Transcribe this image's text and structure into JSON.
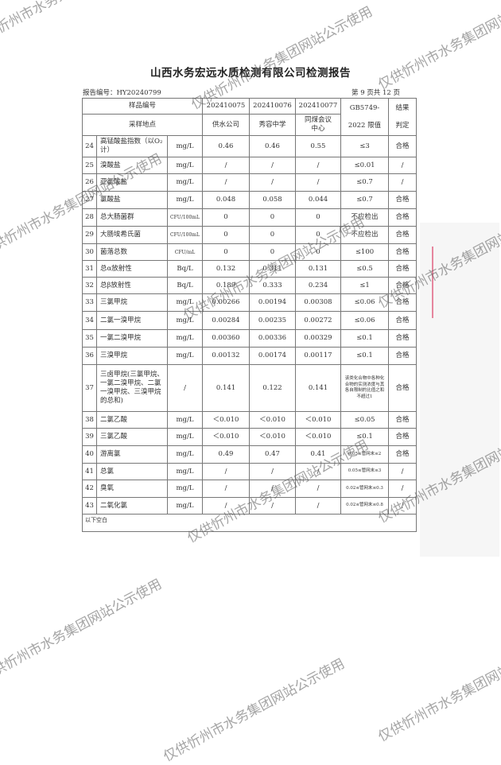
{
  "title": "山西水务宏远水质检测有限公司检测报告",
  "report_no": "报告编号：HY20240799",
  "page_info": "第 9 页共 12 页",
  "header": {
    "sample_no_label": "样品编号",
    "site_label": "采样地点",
    "samples": [
      "202410075",
      "202410076",
      "202410077"
    ],
    "sites": [
      "供水公司",
      "秀容中学",
      "同煤会议中心"
    ],
    "limit_label_1": "GB5749-",
    "limit_label_2": "2022 限值",
    "result_label": "结果判定"
  },
  "rows": [
    {
      "no": "24",
      "item": "高锰酸盐指数（以O₂计）",
      "unit": "mg/L",
      "v1": "0.46",
      "v2": "0.46",
      "v3": "0.55",
      "limit": "≤3",
      "result": "合格"
    },
    {
      "no": "25",
      "item": "溴酸盐",
      "unit": "mg/L",
      "v1": "/",
      "v2": "/",
      "v3": "/",
      "limit": "≤0.01",
      "result": "/"
    },
    {
      "no": "26",
      "item": "亚氯酸盐",
      "unit": "mg/L",
      "v1": "/",
      "v2": "/",
      "v3": "/",
      "limit": "≤0.7",
      "result": "/"
    },
    {
      "no": "27",
      "item": "氯酸盐",
      "unit": "mg/L",
      "v1": "0.048",
      "v2": "0.058",
      "v3": "0.044",
      "limit": "≤0.7",
      "result": "合格"
    },
    {
      "no": "28",
      "item": "总大肠菌群",
      "unit": "CFU/100mL",
      "v1": "0",
      "v2": "0",
      "v3": "0",
      "limit": "不应检出",
      "result": "合格"
    },
    {
      "no": "29",
      "item": "大肠埃希氏菌",
      "unit": "CFU/100mL",
      "v1": "0",
      "v2": "0",
      "v3": "0",
      "limit": "不应检出",
      "result": "合格"
    },
    {
      "no": "30",
      "item": "菌落总数",
      "unit": "CFU/mL",
      "v1": "0",
      "v2": "0",
      "v3": "0",
      "limit": "≤100",
      "result": "合格"
    },
    {
      "no": "31",
      "item": "总α放射性",
      "unit": "Bq/L",
      "v1": "0.132",
      "v2": "0.311",
      "v3": "0.131",
      "limit": "≤0.5",
      "result": "合格"
    },
    {
      "no": "32",
      "item": "总β放射性",
      "unit": "Bq/L",
      "v1": "0.189",
      "v2": "0.333",
      "v3": "0.234",
      "limit": "≤1",
      "result": "合格"
    },
    {
      "no": "33",
      "item": "三氯甲烷",
      "unit": "mg/L",
      "v1": "0.00266",
      "v2": "0.00194",
      "v3": "0.00308",
      "limit": "≤0.06",
      "result": "合格"
    },
    {
      "no": "34",
      "item": "二氯一溴甲烷",
      "unit": "mg/L",
      "v1": "0.00284",
      "v2": "0.00235",
      "v3": "0.00272",
      "limit": "≤0.06",
      "result": "合格"
    },
    {
      "no": "35",
      "item": "一氯二溴甲烷",
      "unit": "mg/L",
      "v1": "0.00360",
      "v2": "0.00336",
      "v3": "0.00329",
      "limit": "≤0.1",
      "result": "合格"
    },
    {
      "no": "36",
      "item": "三溴甲烷",
      "unit": "mg/L",
      "v1": "0.00132",
      "v2": "0.00174",
      "v3": "0.00117",
      "limit": "≤0.1",
      "result": "合格"
    },
    {
      "no": "37",
      "item": "三卤甲烷(三氯甲烷、一氯二溴甲烷、二氯一溴甲烷、三溴甲烷的总和)",
      "unit": "/",
      "v1": "0.141",
      "v2": "0.122",
      "v3": "0.141",
      "limit": "该类化合物中各种化合物的实测浓度与其各自限制的比值之和不超过1",
      "result": "合格"
    },
    {
      "no": "38",
      "item": "二氯乙酸",
      "unit": "mg/L",
      "v1": "＜0.010",
      "v2": "＜0.010",
      "v3": "＜0.010",
      "limit": "≤0.05",
      "result": "合格"
    },
    {
      "no": "39",
      "item": "三氯乙酸",
      "unit": "mg/L",
      "v1": "＜0.010",
      "v2": "＜0.010",
      "v3": "＜0.010",
      "limit": "≤0.1",
      "result": "合格"
    },
    {
      "no": "40",
      "item": "游离氯",
      "unit": "mg/L",
      "v1": "0.49",
      "v2": "0.47",
      "v3": "0.41",
      "limit": "0.05≤管网末≤2",
      "result": "合格"
    },
    {
      "no": "41",
      "item": "总氯",
      "unit": "mg/L",
      "v1": "/",
      "v2": "/",
      "v3": "/",
      "limit": "0.05≤管网末≤3",
      "result": "/"
    },
    {
      "no": "42",
      "item": "臭氧",
      "unit": "mg/L",
      "v1": "/",
      "v2": "/",
      "v3": "/",
      "limit": "0.02≤管网末≤0.3",
      "result": "/"
    },
    {
      "no": "43",
      "item": "二氧化氯",
      "unit": "mg/L",
      "v1": "/",
      "v2": "/",
      "v3": "/",
      "limit": "0.02≤管网末≤0.8",
      "result": "/"
    }
  ],
  "footer_note": "以下空白",
  "watermark": "仅供忻州市水务集团网站公示使用"
}
